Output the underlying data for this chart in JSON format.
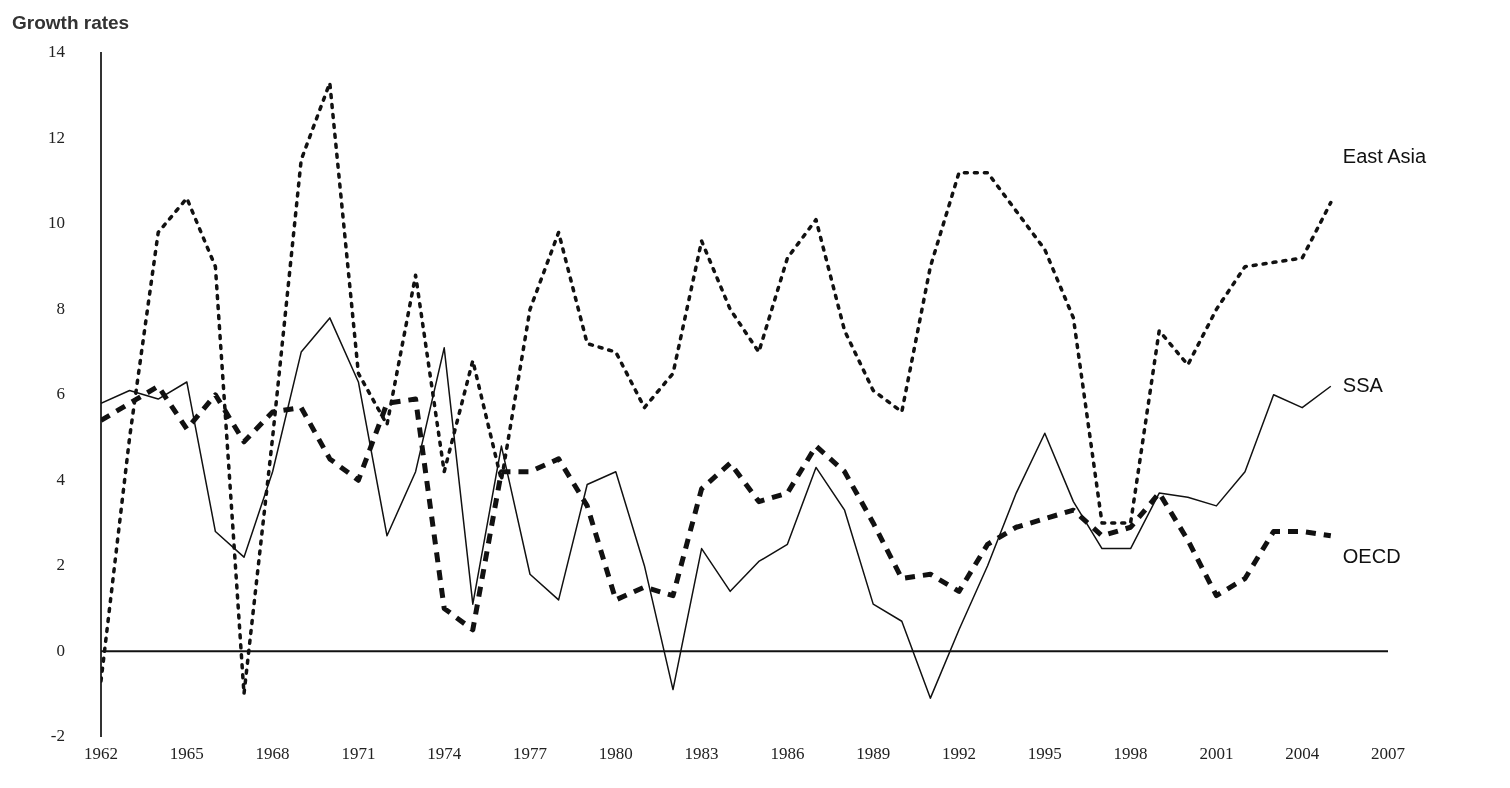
{
  "chart_data": {
    "type": "line",
    "ylabel": "Growth rates",
    "x": [
      1962,
      1963,
      1964,
      1965,
      1966,
      1967,
      1968,
      1969,
      1970,
      1971,
      1972,
      1973,
      1974,
      1975,
      1976,
      1977,
      1978,
      1979,
      1980,
      1981,
      1982,
      1983,
      1984,
      1985,
      1986,
      1987,
      1988,
      1989,
      1990,
      1991,
      1992,
      1993,
      1994,
      1995,
      1996,
      1997,
      1998,
      1999,
      2000,
      2001,
      2002,
      2003,
      2004,
      2005
    ],
    "series": [
      {
        "name": "East Asia",
        "color": "#111111",
        "line_style": "dotted",
        "values": [
          -0.7,
          5,
          9.8,
          10.6,
          9,
          -1,
          5,
          11.5,
          13.3,
          6.5,
          5.3,
          8.8,
          4.2,
          6.8,
          4,
          8,
          9.8,
          7.2,
          7,
          5.7,
          6.5,
          9.6,
          8,
          7,
          9.2,
          10.1,
          7.5,
          6.1,
          5.6,
          9,
          11.2,
          11.2,
          10.3,
          9.4,
          7.8,
          3,
          3,
          7.5,
          6.7,
          8,
          9,
          9.1,
          9.2,
          10.5
        ]
      },
      {
        "name": "SSA",
        "color": "#111111",
        "line_style": "solid",
        "values": [
          5.8,
          6.1,
          5.9,
          6.3,
          2.8,
          2.2,
          4.2,
          7,
          7.8,
          6.3,
          2.7,
          4.2,
          7.1,
          1.1,
          4.8,
          1.8,
          1.2,
          3.9,
          4.2,
          2,
          -0.9,
          2.4,
          1.4,
          2.1,
          2.5,
          4.3,
          3.3,
          1.1,
          0.7,
          -1.1,
          0.5,
          2,
          3.7,
          5.1,
          3.5,
          2.4,
          2.4,
          3.7,
          3.6,
          3.4,
          4.2,
          6,
          5.7,
          6.2
        ]
      },
      {
        "name": "OECD",
        "color": "#111111",
        "line_style": "dashed",
        "values": [
          5.4,
          5.8,
          6.2,
          5.2,
          6,
          4.9,
          5.6,
          5.7,
          4.5,
          4,
          5.8,
          5.9,
          1,
          0.5,
          4.2,
          4.2,
          4.5,
          3.4,
          1.2,
          1.5,
          1.3,
          3.8,
          4.4,
          3.5,
          3.7,
          4.8,
          4.2,
          3,
          1.7,
          1.8,
          1.4,
          2.5,
          2.9,
          3.1,
          3.3,
          2.7,
          2.9,
          3.7,
          2.6,
          1.3,
          1.7,
          2.8,
          2.8,
          2.7
        ]
      }
    ],
    "xlim": [
      1962,
      2007
    ],
    "xticks": [
      1962,
      1965,
      1968,
      1971,
      1974,
      1977,
      1980,
      1983,
      1986,
      1989,
      1992,
      1995,
      1998,
      2001,
      2004,
      2007
    ],
    "ylim": [
      -2,
      14
    ],
    "yticks": [
      -2,
      0,
      2,
      4,
      6,
      8,
      10,
      12,
      14
    ],
    "ref_lines": [
      {
        "axis": "y",
        "value": 0,
        "color": "#111111",
        "line_style": "solid"
      }
    ],
    "grid": false,
    "legend": false,
    "marker": "none"
  }
}
